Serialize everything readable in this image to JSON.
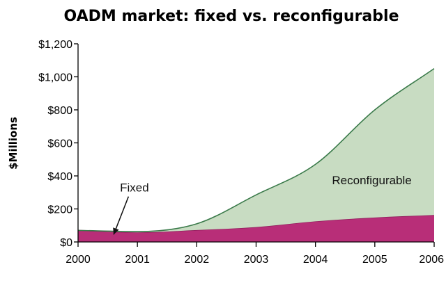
{
  "chart_data": {
    "type": "area",
    "title": "OADM market: fixed vs. reconfigurable",
    "ylabel": "$Millions",
    "xlabel": "",
    "stacked": true,
    "x": [
      2000,
      2001,
      2002,
      2003,
      2004,
      2005,
      2006
    ],
    "xlim": [
      2000,
      2006
    ],
    "ylim": [
      0,
      1200
    ],
    "yticks": [
      0,
      200,
      400,
      600,
      800,
      1000,
      1200
    ],
    "ytick_labels": [
      "$0",
      "$200",
      "$400",
      "$600",
      "$800",
      "$1,000",
      "$1,200"
    ],
    "xtick_labels": [
      "2000",
      "2001",
      "2002",
      "2003",
      "2004",
      "2005",
      "2006"
    ],
    "series": [
      {
        "name": "Fixed",
        "values": [
          70,
          58,
          72,
          90,
          125,
          148,
          163
        ],
        "color": "#b82e78"
      },
      {
        "name": "Reconfigurable",
        "values": [
          0,
          5,
          38,
          195,
          345,
          652,
          887
        ],
        "color": "#c8dcc2"
      }
    ],
    "annotations": [
      {
        "text": "Reconfigurable",
        "series": "Reconfigurable"
      },
      {
        "text": "Fixed",
        "series": "Fixed",
        "arrow": true
      }
    ],
    "grid": false,
    "legend": "none"
  }
}
